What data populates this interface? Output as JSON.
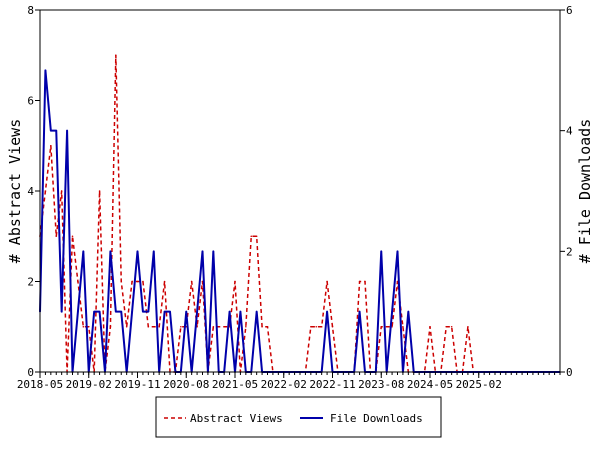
{
  "chart_data": {
    "type": "line",
    "title": "",
    "ylabel_left": "# Abstract Views",
    "ylabel_right": "# File Downloads",
    "ylim_left": [
      0,
      8
    ],
    "ylim_right": [
      0,
      6
    ],
    "yticks_left": [
      "0",
      "2",
      "4",
      "6",
      "8"
    ],
    "yticks_right": [
      "0",
      "2",
      "4",
      "6"
    ],
    "xlim": [
      "2018-05",
      "2026-05"
    ],
    "xtick_labels": [
      "2018-05",
      "2019-02",
      "2019-11",
      "2020-08",
      "2021-05",
      "2022-02",
      "2022-11",
      "2023-08",
      "2024-05",
      "2025-02"
    ],
    "legend_position": "bottom",
    "series": [
      {
        "name": "Abstract Views",
        "axis": "left",
        "color": "#cc0000",
        "style": "dashed",
        "x": [
          "2018-05",
          "2018-06",
          "2018-07",
          "2018-08",
          "2018-09",
          "2018-10",
          "2018-11",
          "2018-12",
          "2019-01",
          "2019-02",
          "2019-03",
          "2019-04",
          "2019-05",
          "2019-06",
          "2019-07",
          "2019-08",
          "2019-09",
          "2019-10",
          "2019-11",
          "2019-12",
          "2020-01",
          "2020-02",
          "2020-03",
          "2020-04",
          "2020-05",
          "2020-06",
          "2020-07",
          "2020-08",
          "2020-09",
          "2020-10",
          "2020-11",
          "2020-12",
          "2021-01",
          "2021-02",
          "2021-03",
          "2021-04",
          "2021-05",
          "2021-06",
          "2021-07",
          "2021-08",
          "2021-09",
          "2021-10",
          "2021-11",
          "2021-12",
          "2022-01",
          "2022-02",
          "2022-03",
          "2022-04",
          "2022-05",
          "2022-06",
          "2022-07",
          "2022-08",
          "2022-09",
          "2022-10",
          "2022-11",
          "2022-12",
          "2023-01",
          "2023-02",
          "2023-03",
          "2023-04",
          "2023-05",
          "2023-06",
          "2023-07",
          "2023-08",
          "2023-09",
          "2023-10",
          "2023-11",
          "2023-12",
          "2024-01",
          "2024-02",
          "2024-03",
          "2024-04",
          "2024-05",
          "2024-06",
          "2024-07",
          "2024-08",
          "2024-09",
          "2024-10",
          "2024-11",
          "2024-12",
          "2025-01",
          "2025-02",
          "2025-03",
          "2025-04",
          "2025-05",
          "2025-06",
          "2025-07",
          "2025-08",
          "2025-09",
          "2025-10",
          "2025-11",
          "2025-12",
          "2026-01",
          "2026-02",
          "2026-03",
          "2026-04",
          "2026-05"
        ],
        "values": [
          3,
          4,
          5,
          3,
          4,
          0,
          3,
          2,
          1,
          1,
          0,
          4,
          0,
          1,
          7,
          2,
          1,
          2,
          2,
          2,
          1,
          1,
          1,
          2,
          0,
          0,
          1,
          1,
          2,
          1,
          2,
          0,
          1,
          1,
          1,
          1,
          2,
          0,
          1,
          3,
          3,
          1,
          1,
          0,
          0,
          0,
          0,
          0,
          0,
          0,
          1,
          1,
          1,
          2,
          1,
          0,
          0,
          0,
          0,
          2,
          2,
          0,
          0,
          1,
          1,
          1,
          2,
          1,
          0,
          0,
          0,
          0,
          1,
          0,
          0,
          1,
          1,
          0,
          0,
          1,
          0,
          0,
          0,
          0,
          0,
          0,
          0,
          0,
          0,
          0,
          0,
          0,
          0,
          0,
          0,
          0,
          0
        ]
      },
      {
        "name": "File Downloads",
        "axis": "right",
        "color": "#0000aa",
        "style": "solid",
        "x": [
          "2018-05",
          "2018-06",
          "2018-07",
          "2018-08",
          "2018-09",
          "2018-10",
          "2018-11",
          "2018-12",
          "2019-01",
          "2019-02",
          "2019-03",
          "2019-04",
          "2019-05",
          "2019-06",
          "2019-07",
          "2019-08",
          "2019-09",
          "2019-10",
          "2019-11",
          "2019-12",
          "2020-01",
          "2020-02",
          "2020-03",
          "2020-04",
          "2020-05",
          "2020-06",
          "2020-07",
          "2020-08",
          "2020-09",
          "2020-10",
          "2020-11",
          "2020-12",
          "2021-01",
          "2021-02",
          "2021-03",
          "2021-04",
          "2021-05",
          "2021-06",
          "2021-07",
          "2021-08",
          "2021-09",
          "2021-10",
          "2021-11",
          "2021-12",
          "2022-01",
          "2022-02",
          "2022-03",
          "2022-04",
          "2022-05",
          "2022-06",
          "2022-07",
          "2022-08",
          "2022-09",
          "2022-10",
          "2022-11",
          "2022-12",
          "2023-01",
          "2023-02",
          "2023-03",
          "2023-04",
          "2023-05",
          "2023-06",
          "2023-07",
          "2023-08",
          "2023-09",
          "2023-10",
          "2023-11",
          "2023-12",
          "2024-01",
          "2024-02",
          "2024-03",
          "2024-04",
          "2024-05",
          "2024-06",
          "2024-07",
          "2024-08",
          "2024-09",
          "2024-10",
          "2024-11",
          "2024-12",
          "2025-01",
          "2025-02",
          "2025-03",
          "2025-04",
          "2025-05",
          "2025-06",
          "2025-07",
          "2025-08",
          "2025-09",
          "2025-10",
          "2025-11",
          "2025-12",
          "2026-01",
          "2026-02",
          "2026-03",
          "2026-04",
          "2026-05"
        ],
        "values": [
          1,
          5,
          4,
          4,
          1,
          4,
          0,
          1,
          2,
          0,
          1,
          1,
          0,
          2,
          1,
          1,
          0,
          1,
          2,
          1,
          1,
          2,
          0,
          1,
          1,
          0,
          0,
          1,
          0,
          1,
          2,
          0,
          2,
          0,
          0,
          1,
          0,
          1,
          0,
          0,
          1,
          0,
          0,
          0,
          0,
          0,
          0,
          0,
          0,
          0,
          0,
          0,
          0,
          1,
          0,
          0,
          0,
          0,
          0,
          1,
          0,
          0,
          0,
          2,
          0,
          1,
          2,
          0,
          1,
          0,
          0,
          0,
          0,
          0,
          0,
          0,
          0,
          0,
          0,
          0,
          0,
          0,
          0,
          0,
          0,
          0,
          0,
          0,
          0,
          0,
          0,
          0,
          0,
          0,
          0,
          0,
          0
        ]
      }
    ]
  }
}
